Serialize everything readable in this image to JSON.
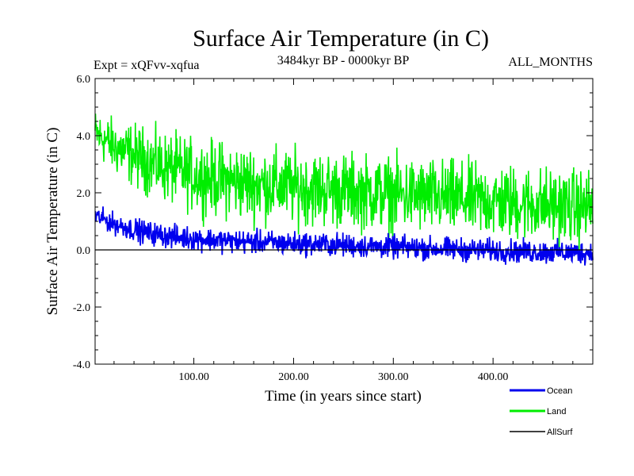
{
  "chart_data": {
    "type": "line",
    "title": "Surface Air Temperature (in C)",
    "left_subtitle": "Expt = xQFvv-xqfua",
    "center_subtitle": "3484kyr BP - 0000kyr BP",
    "right_subtitle": "ALL_MONTHS",
    "xlabel": "Time (in years since start)",
    "ylabel": "Surface Air Temperature (in C)",
    "xlim": [
      1,
      500
    ],
    "ylim": [
      -4.0,
      6.0
    ],
    "xticks": [
      100,
      200,
      300,
      400
    ],
    "xtick_labels": [
      "100.00",
      "200.00",
      "300.00",
      "400.00"
    ],
    "yticks": [
      -4,
      -2,
      0,
      2,
      4,
      6
    ],
    "ytick_labels": [
      "-4.0",
      "-2.0",
      "0.0",
      "2.0",
      "4.0",
      "6.0"
    ],
    "legend_position": "bottom-right",
    "series": [
      {
        "name": "Land",
        "color": "#00ee00",
        "values": [
          4.1,
          3.6,
          3.3,
          3.0,
          2.8,
          2.6,
          2.5,
          2.4,
          2.3,
          2.25,
          2.2,
          2.15,
          2.1,
          2.05,
          2.0,
          1.95,
          1.9,
          1.85,
          1.8,
          1.75,
          1.7,
          1.65,
          1.6,
          1.55,
          1.5,
          1.5
        ],
        "spread": [
          1.2,
          1.4,
          1.6,
          1.7,
          1.8,
          1.8,
          1.9,
          1.9,
          1.9,
          1.9,
          1.9,
          1.9,
          1.9,
          1.9,
          1.9,
          1.9,
          1.9,
          1.9,
          1.9,
          1.9,
          1.9,
          1.9,
          1.9,
          1.9,
          1.9,
          1.9
        ]
      },
      {
        "name": "Ocean",
        "color": "#0000ee",
        "values": [
          1.2,
          0.9,
          0.7,
          0.55,
          0.45,
          0.4,
          0.35,
          0.3,
          0.28,
          0.25,
          0.22,
          0.2,
          0.18,
          0.15,
          0.12,
          0.1,
          0.08,
          0.05,
          0.02,
          0.0,
          -0.02,
          -0.05,
          -0.07,
          -0.08,
          -0.1,
          -0.1
        ],
        "spread": [
          0.5,
          0.55,
          0.6,
          0.6,
          0.6,
          0.6,
          0.6,
          0.6,
          0.6,
          0.6,
          0.6,
          0.6,
          0.6,
          0.6,
          0.6,
          0.6,
          0.6,
          0.6,
          0.6,
          0.6,
          0.6,
          0.6,
          0.6,
          0.6,
          0.6,
          0.6
        ]
      },
      {
        "name": "AllSurf",
        "color": "#000000",
        "values": [
          0.0,
          0.0
        ]
      }
    ]
  }
}
